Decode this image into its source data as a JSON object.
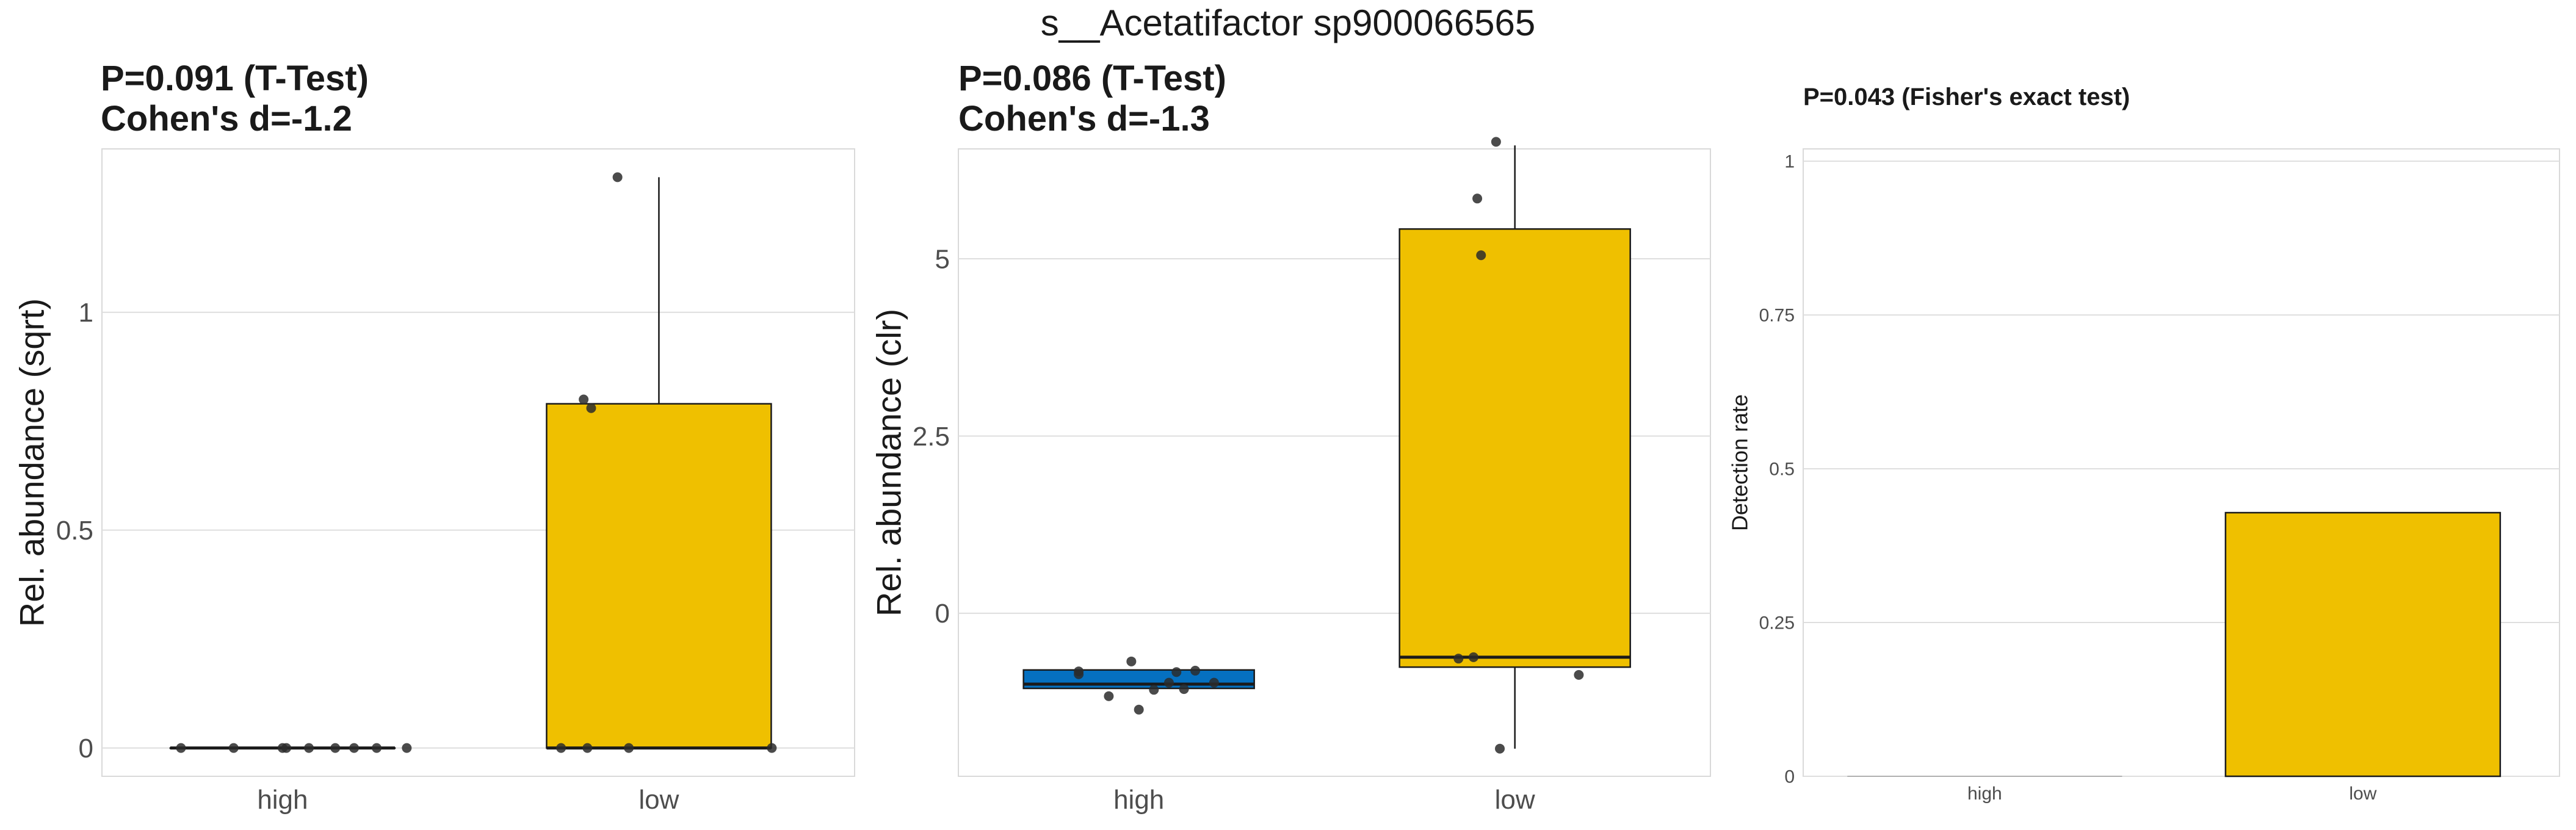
{
  "figure_title": "s__Acetatifactor sp900066565",
  "colors": {
    "high": "#0570C0",
    "low": "#EFC000",
    "point": "#2b2b2b",
    "grid": "#DEDEDE",
    "panel_border": "#D9D9D9",
    "outline": "#1a1a1a",
    "text": "#1a1a1a",
    "tick_text": "#4D4D4D"
  },
  "chart_data": [
    {
      "type": "box",
      "title": [
        "P=0.091 (T-Test)",
        "Cohen's d=-1.2"
      ],
      "ylabel": "Rel. abundance (sqrt)",
      "xlabel": "",
      "categories": [
        "high",
        "low"
      ],
      "ylim": [
        -0.065,
        1.375
      ],
      "yticks": [
        0,
        0.5,
        1
      ],
      "ytick_labels": [
        "0",
        "0.5",
        "1"
      ],
      "grid": true,
      "legend": "none",
      "boxes": [
        {
          "group": "high",
          "q1": 0,
          "median": 0,
          "q3": 0,
          "whisker_low": 0,
          "whisker_high": 0
        },
        {
          "group": "low",
          "q1": 0,
          "median": 0,
          "q3": 0.79,
          "whisker_low": 0,
          "whisker_high": 1.31
        }
      ],
      "points": [
        {
          "group": "high",
          "x_offset": -0.27,
          "y": 0
        },
        {
          "group": "high",
          "x_offset": -0.13,
          "y": 0
        },
        {
          "group": "high",
          "x_offset": 0.0,
          "y": 0
        },
        {
          "group": "high",
          "x_offset": 0.01,
          "y": 0
        },
        {
          "group": "high",
          "x_offset": 0.07,
          "y": 0
        },
        {
          "group": "high",
          "x_offset": 0.14,
          "y": 0
        },
        {
          "group": "high",
          "x_offset": 0.19,
          "y": 0
        },
        {
          "group": "high",
          "x_offset": 0.25,
          "y": 0
        },
        {
          "group": "high",
          "x_offset": 0.33,
          "y": 0
        },
        {
          "group": "low",
          "x_offset": -0.2,
          "y": 0.8
        },
        {
          "group": "low",
          "x_offset": -0.18,
          "y": 0.78
        },
        {
          "group": "low",
          "x_offset": -0.11,
          "y": 1.31
        },
        {
          "group": "low",
          "x_offset": -0.26,
          "y": 0
        },
        {
          "group": "low",
          "x_offset": -0.19,
          "y": 0
        },
        {
          "group": "low",
          "x_offset": -0.08,
          "y": 0
        },
        {
          "group": "low",
          "x_offset": 0.3,
          "y": 0
        }
      ]
    },
    {
      "type": "box",
      "title": [
        "P=0.086 (T-Test)",
        "Cohen's d=-1.3"
      ],
      "ylabel": "Rel. abundance (clr)",
      "xlabel": "",
      "categories": [
        "high",
        "low"
      ],
      "ylim": [
        -2.3,
        6.55
      ],
      "yticks": [
        0,
        2.5,
        5
      ],
      "ytick_labels": [
        "0",
        "2.5",
        "5"
      ],
      "grid": true,
      "legend": "none",
      "boxes": [
        {
          "group": "high",
          "q1": -1.06,
          "median": -1.0,
          "q3": -0.8,
          "whisker_low": -1.06,
          "whisker_high": -0.8
        },
        {
          "group": "low",
          "q1": -0.76,
          "median": -0.62,
          "q3": 5.42,
          "whisker_low": -1.91,
          "whisker_high": 6.6
        }
      ],
      "points": [
        {
          "group": "high",
          "x_offset": -0.16,
          "y": -0.82
        },
        {
          "group": "high",
          "x_offset": -0.16,
          "y": -0.86
        },
        {
          "group": "high",
          "x_offset": -0.08,
          "y": -1.17
        },
        {
          "group": "high",
          "x_offset": -0.02,
          "y": -0.68
        },
        {
          "group": "high",
          "x_offset": 0.0,
          "y": -1.36
        },
        {
          "group": "high",
          "x_offset": 0.04,
          "y": -1.08
        },
        {
          "group": "high",
          "x_offset": 0.08,
          "y": -0.98
        },
        {
          "group": "high",
          "x_offset": 0.1,
          "y": -0.83
        },
        {
          "group": "high",
          "x_offset": 0.12,
          "y": -1.07
        },
        {
          "group": "high",
          "x_offset": 0.15,
          "y": -0.81
        },
        {
          "group": "high",
          "x_offset": 0.2,
          "y": -0.98
        },
        {
          "group": "low",
          "x_offset": -0.15,
          "y": -0.64
        },
        {
          "group": "low",
          "x_offset": -0.11,
          "y": -0.62
        },
        {
          "group": "low",
          "x_offset": -0.1,
          "y": 5.85
        },
        {
          "group": "low",
          "x_offset": -0.09,
          "y": 5.05
        },
        {
          "group": "low",
          "x_offset": -0.05,
          "y": 6.65
        },
        {
          "group": "low",
          "x_offset": 0.17,
          "y": -0.87
        },
        {
          "group": "low",
          "x_offset": -0.04,
          "y": -1.91
        }
      ]
    },
    {
      "type": "bar",
      "title": [
        "P=0.043 (Fisher's exact test)"
      ],
      "ylabel": "Detection rate",
      "xlabel": "",
      "categories": [
        "high",
        "low"
      ],
      "values": [
        0,
        0.4286
      ],
      "ylim": [
        0,
        1.02
      ],
      "yticks": [
        0,
        0.25,
        0.5,
        0.75,
        1
      ],
      "ytick_labels": [
        "0",
        "0.25",
        "0.5",
        "0.75",
        "1"
      ],
      "grid": true,
      "legend": "none"
    }
  ]
}
